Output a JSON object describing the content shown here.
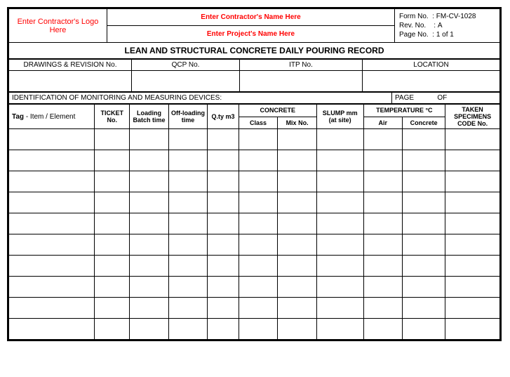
{
  "header": {
    "logo_placeholder": "Enter Contractor's Logo Here",
    "contractor_name": "Enter Contractor's Name Here",
    "project_name": "Enter Project's Name Here",
    "form_no_label": "Form No.",
    "form_no_value": "FM-CV-1028",
    "rev_no_label": "Rev. No.",
    "rev_no_value": "A",
    "page_no_label": "Page No.",
    "page_no_value": "1 of 1",
    "title": "LEAN AND STRUCTURAL CONCRETE DAILY POURING RECORD"
  },
  "subheader": {
    "drawings_label": "DRAWINGS & REVISION No.",
    "qcp_label": "QCP No.",
    "itp_label": "ITP No.",
    "location_label": "LOCATION",
    "identification_label": "IDENTIFICATION OF MONITORING AND MEASURING DEVICES:",
    "page_label": "PAGE",
    "of_label": "OF"
  },
  "columns": {
    "tag": "Tag",
    "tag_suffix": " - Item / Element",
    "ticket": "TICKET No.",
    "loading": "Loading Batch time",
    "offloading": "Off-loading time",
    "qty": "Q.ty m3",
    "concrete": "CONCRETE",
    "class": "Class",
    "mixno": "Mix No.",
    "slump": "SLUMP mm (at site)",
    "temperature": "TEMPERATURE °C",
    "air": "Air",
    "concrete_temp": "Concrete",
    "specimens": "TAKEN SPECIMENS CODE No."
  },
  "rows": 10
}
